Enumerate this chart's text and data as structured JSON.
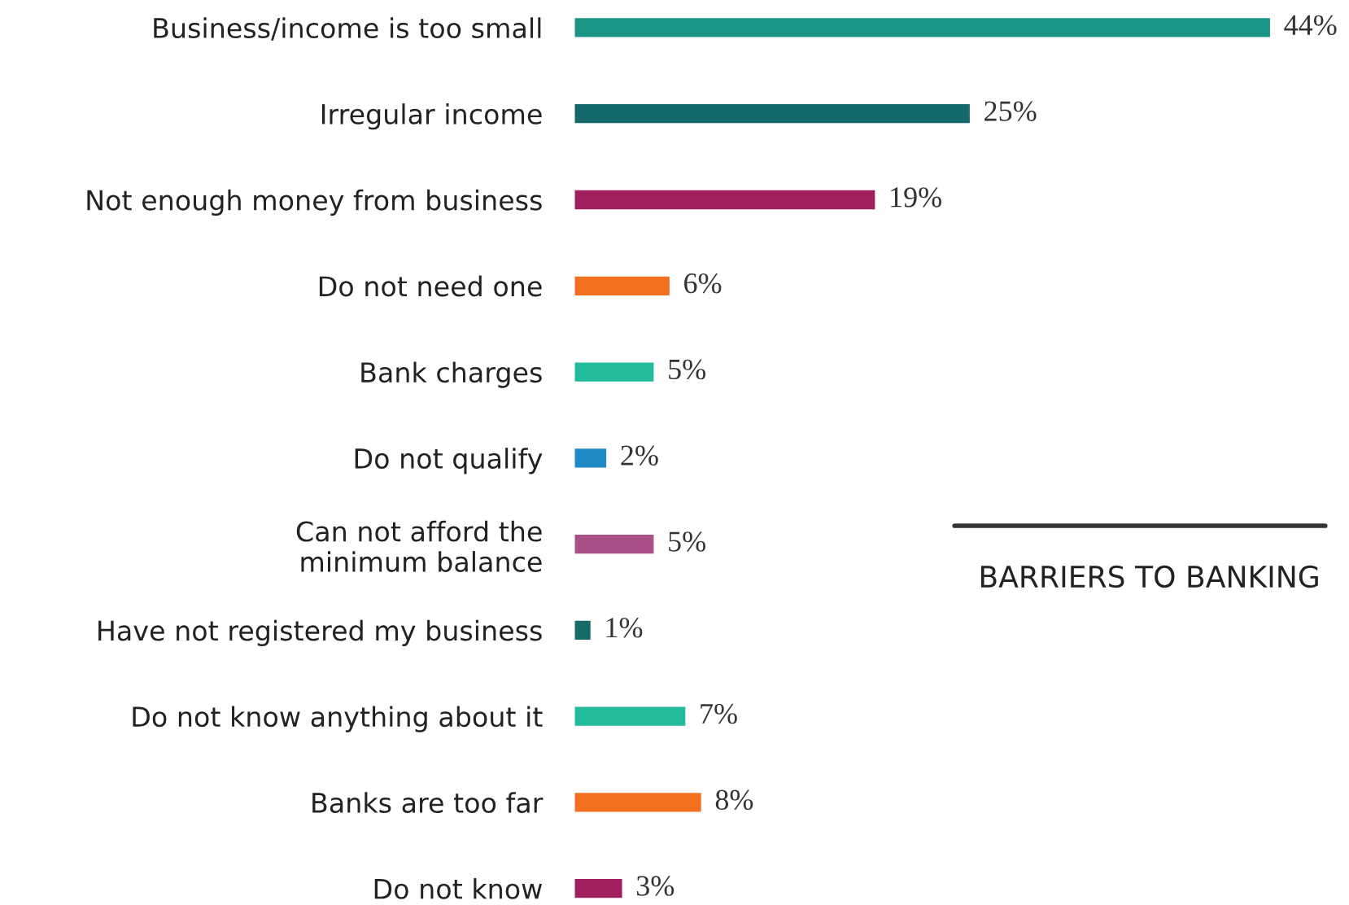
{
  "chart_data": {
    "type": "bar",
    "orientation": "horizontal",
    "title": "BARRIERS TO BANKING",
    "categories": [
      "Business/income is too small",
      "Irregular income",
      "Not enough money from business",
      "Do not need one",
      "Bank charges",
      "Do not qualify",
      "Can not afford the\nminimum balance",
      "Have not registered my business",
      "Do not know anything about it",
      "Banks are too far",
      "Do not know"
    ],
    "values": [
      44,
      25,
      19,
      6,
      5,
      2,
      5,
      1,
      7,
      8,
      3
    ],
    "colors": [
      "#1b9488",
      "#16696a",
      "#a01f5e",
      "#f47021",
      "#22bc9c",
      "#1f8ac6",
      "#a84f88",
      "#166a6a",
      "#22bc9c",
      "#f47021",
      "#a01f5e"
    ],
    "value_labels": [
      "44%",
      "25%",
      "19%",
      "6%",
      "5%",
      "2%",
      "5%",
      "1%",
      "7%",
      "8%",
      "3%"
    ]
  }
}
